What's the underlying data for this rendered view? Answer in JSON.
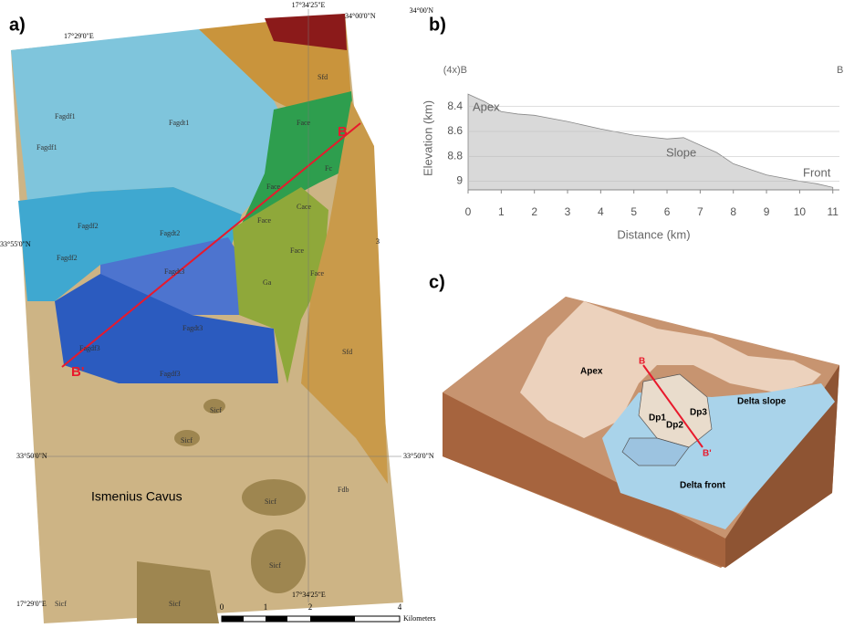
{
  "chart_data": {
    "type": "area",
    "panel_label": "b)",
    "x_label": "Distance (km)",
    "y_label": "Elevation (km)",
    "start_label": "(4x)B",
    "end_label": "B",
    "annotations": [
      "Apex",
      "Slope",
      "Front"
    ],
    "x": [
      0,
      0.5,
      1,
      1.5,
      2,
      3,
      4,
      5,
      6,
      6.5,
      7,
      7.5,
      8,
      9,
      10,
      10.5,
      11
    ],
    "values": [
      8.3,
      8.36,
      8.44,
      8.46,
      8.47,
      8.52,
      8.58,
      8.63,
      8.66,
      8.65,
      8.71,
      8.77,
      8.86,
      8.95,
      9.0,
      9.02,
      9.05
    ],
    "color": "#d9d9d9",
    "xlim": [
      0,
      11.2
    ],
    "ylim": [
      9.07,
      8.24
    ],
    "xticks": [
      0,
      1,
      2,
      3,
      4,
      5,
      6,
      7,
      8,
      9,
      10,
      11
    ],
    "yticks": [
      8.4,
      8.6,
      8.8,
      9.0
    ],
    "grid": true
  },
  "map": {
    "panel_label": "a)",
    "coords": [
      "17°29'0\"E",
      "34°00'N",
      "17°34'25\"E",
      "34°00'0\"N",
      "33°55'0\"N",
      "3",
      "33°50'0\"N",
      "33°50'0\"N",
      "17°29'0\"E",
      "17°34'25\"E"
    ],
    "units": [
      "Fagdf1",
      "Fagdt1",
      "Fagdf1",
      "Sfd",
      "Face",
      "Fc",
      "Face",
      "Face",
      "Cace",
      "Fagdf2",
      "Fagdt2",
      "Fagdf2",
      "Fagdt3",
      "Face",
      "Face",
      "Ga",
      "Fagdt3",
      "Fagdf3",
      "Fagdf3",
      "Sfd",
      "Sicf",
      "Sicf",
      "Fdb",
      "Sicf",
      "Sicf",
      "Sicf",
      "Sicf"
    ],
    "place": "Ismenius Cavus",
    "profile_start": "B",
    "profile_end": "B'",
    "scale": [
      "0",
      "1",
      "2",
      "4",
      "Kilometers"
    ]
  },
  "diagram": {
    "panel_label": "c)",
    "labels": [
      "Apex",
      "B",
      "Dp1",
      "Dp2",
      "Dp3",
      "Delta slope",
      "Delta front",
      "B'"
    ]
  }
}
